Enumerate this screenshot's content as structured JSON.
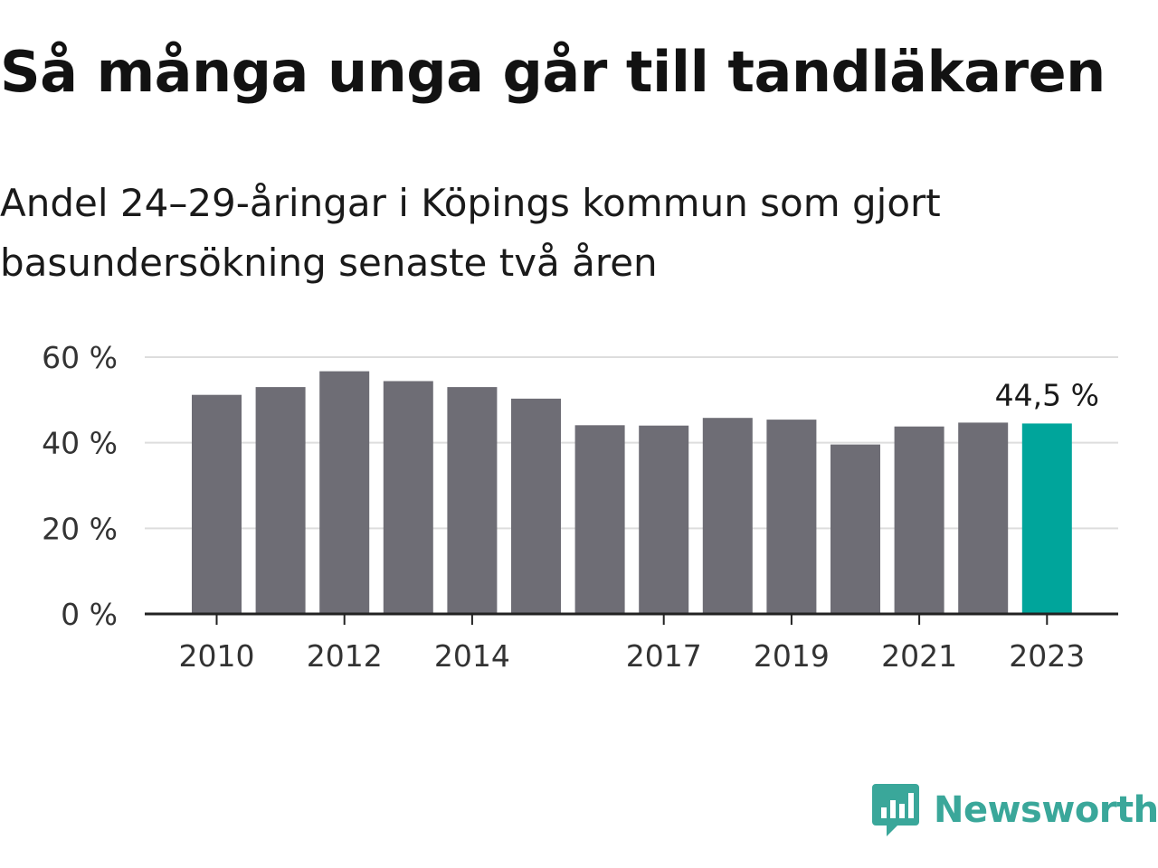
{
  "title": "Så många unga går till tandläkaren",
  "subtitle": "Andel 24–29-åringar i Köpings kommun som gjort basundersökning senaste två åren",
  "brand": {
    "name": "Newsworthy",
    "icon": "bar-chart-speech-bubble-icon",
    "color": "#3aa79a"
  },
  "colors": {
    "bar": "#6e6d75",
    "highlight": "#00a59b",
    "grid": "#dddddd",
    "axis": "#222222"
  },
  "chart_data": {
    "type": "bar",
    "categories": [
      "2010",
      "2011",
      "2012",
      "2013",
      "2014",
      "2015",
      "2016",
      "2017",
      "2018",
      "2019",
      "2020",
      "2021",
      "2022",
      "2023"
    ],
    "values": [
      51.2,
      53.0,
      56.7,
      54.4,
      53.0,
      50.3,
      44.1,
      44.0,
      45.8,
      45.4,
      39.6,
      43.8,
      44.7,
      44.5
    ],
    "ylim": [
      0,
      60
    ],
    "y_ticks": [
      0,
      20,
      40,
      60
    ],
    "y_tick_labels": [
      "0 %",
      "20 %",
      "40 %",
      "60 %"
    ],
    "x_tick_labels": [
      "2010",
      "2012",
      "2014",
      "2017",
      "2019",
      "2021",
      "2023"
    ],
    "highlight_index": 13,
    "data_labels": [
      {
        "index": 13,
        "text": "44,5 %"
      }
    ],
    "grid": true,
    "legend": "none"
  }
}
